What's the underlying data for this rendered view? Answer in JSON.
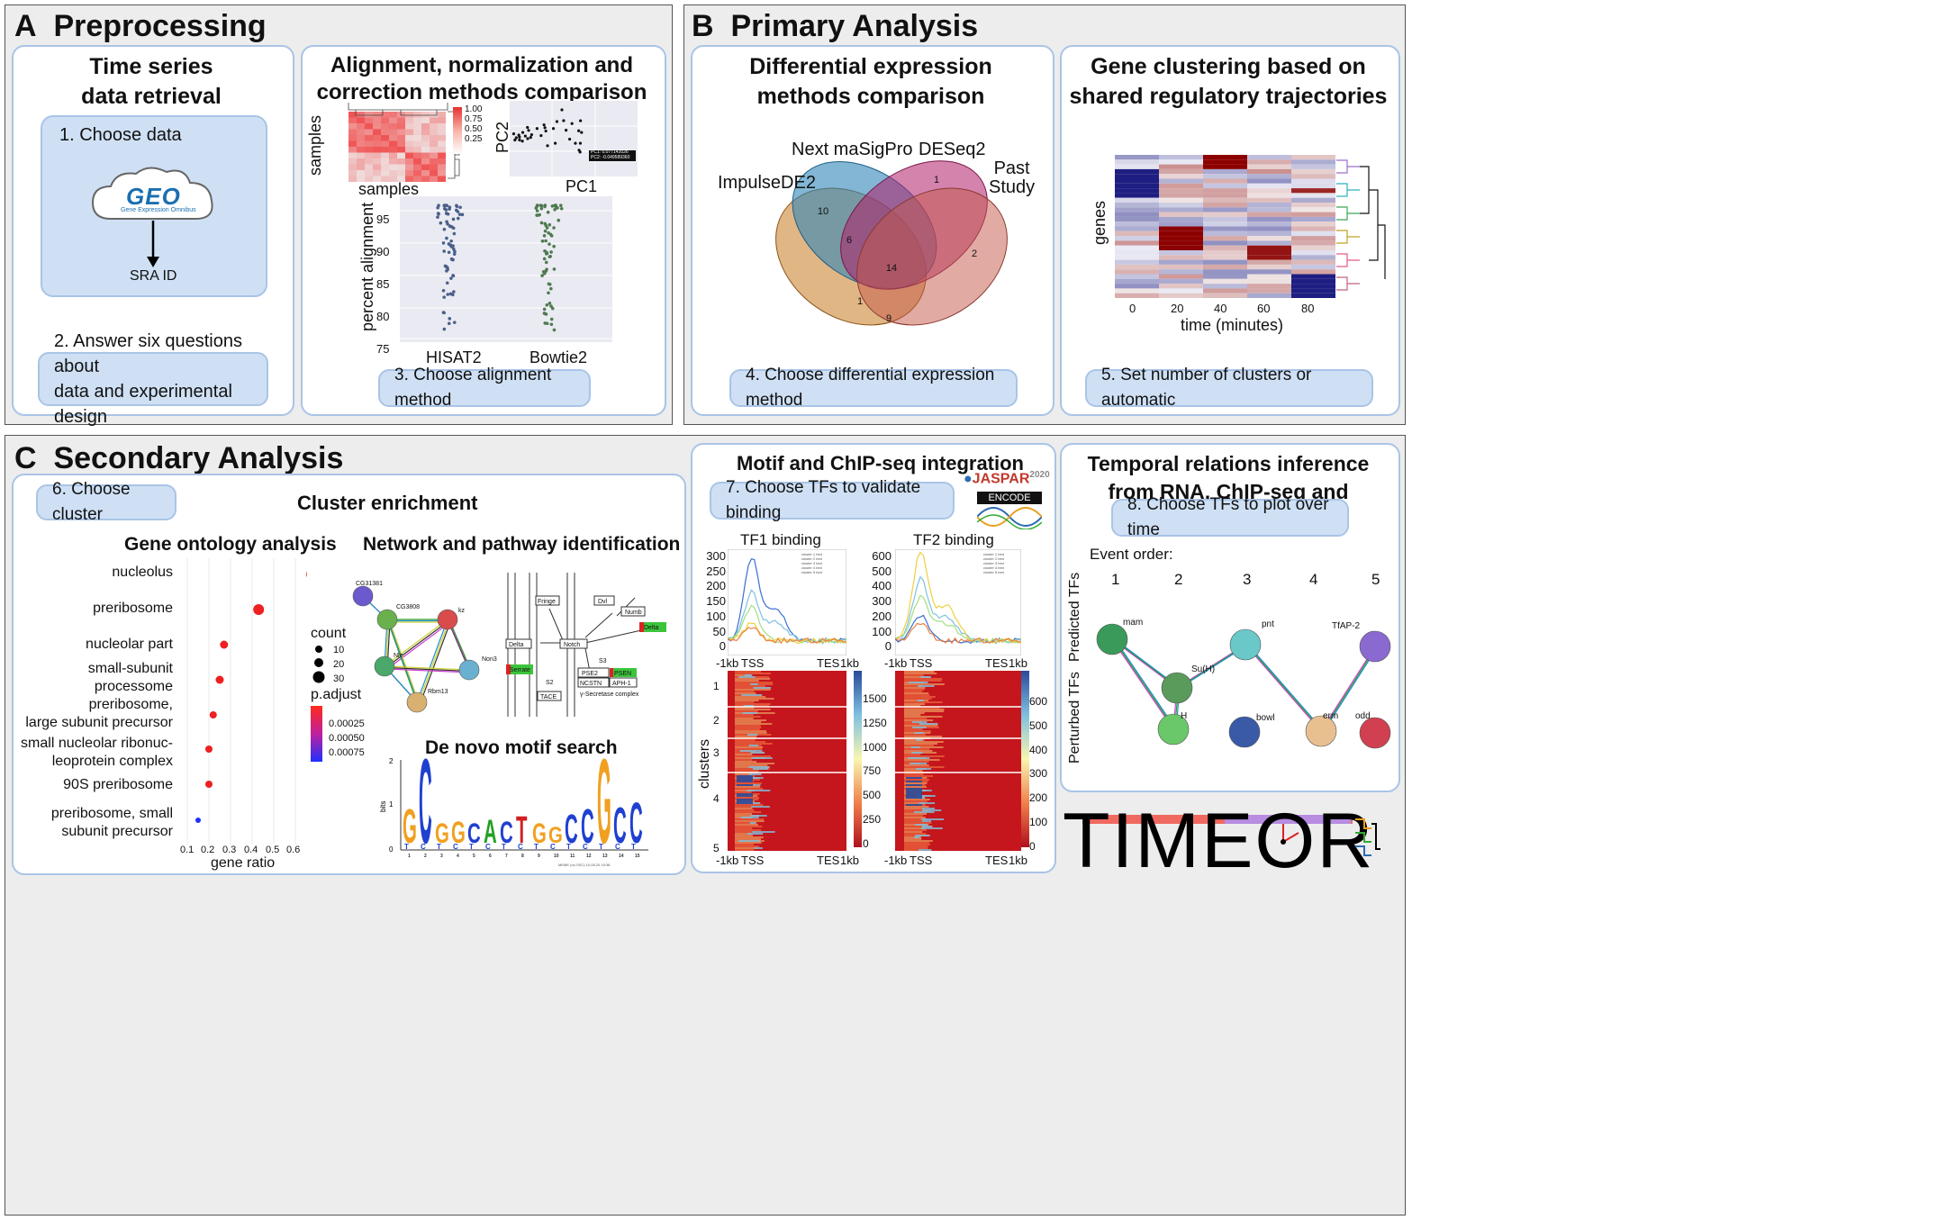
{
  "sections": {
    "a": {
      "letter": "A",
      "title": "Preprocessing"
    },
    "b": {
      "letter": "B",
      "title": "Primary Analysis"
    },
    "c": {
      "letter": "C",
      "title": "Secondary Analysis"
    }
  },
  "retrieval": {
    "title1": "Time series",
    "title2": "data retrieval",
    "step1": "1. Choose data",
    "geo_logo": "GEO",
    "geo_sub": "Gene Expression Omnibus",
    "sra": "SRA ID",
    "step2_line1": "2. Answer six questions about",
    "step2_line2": "data and experimental design"
  },
  "alignment": {
    "title1": "Alignment, normalization and",
    "title2": "correction methods comparison",
    "heat_ylabel": "samples",
    "heat_xlabel": "samples",
    "heat_scale": [
      "1.00",
      "0.75",
      "0.50",
      "0.25"
    ],
    "pca_ylabel": "PC2",
    "pca_xlabel": "PC1",
    "pca_legend1": "PC1: 0.077142026",
    "pca_legend2": "PC2: -0.049589360",
    "strip_ylabel": "percent alignment",
    "strip_yticks": [
      "95",
      "90",
      "85",
      "80",
      "75"
    ],
    "strip_x1": "HISAT2",
    "strip_x2": "Bowtie2",
    "step3": "3. Choose alignment method"
  },
  "diffexp": {
    "title1": "Differential expression",
    "title2": "methods comparison",
    "set1": "Next maSigPro",
    "set2": "DESeq2",
    "set3": "ImpulseDE2",
    "set4a": "Past",
    "set4b": "Study",
    "counts": [
      "10",
      "1",
      "6",
      "14",
      "2",
      "1",
      "9"
    ],
    "step4": "4. Choose differential expression method"
  },
  "clustering": {
    "title1": "Gene clustering based on",
    "title2": "shared regulatory trajectories",
    "ylabel": "genes",
    "xticks": [
      "0",
      "20",
      "40",
      "60",
      "80"
    ],
    "xlabel": "time (minutes)",
    "step5": "5. Set number of clusters or automatic"
  },
  "enrichment": {
    "step6": "6. Choose cluster",
    "title": "Cluster enrichment",
    "go_title": "Gene ontology analysis",
    "network_title": "Network and pathway identification",
    "motif_title": "De novo motif search",
    "go_terms": [
      "nucleolus",
      "preribosome",
      "nucleolar part",
      "small-subunit",
      "processome",
      "preribosome,",
      "large subunit precursor",
      "small nucleolar ribonuc-",
      "leoprotein complex",
      "90S preribosome",
      "preribosome, small",
      "subunit precursor"
    ],
    "xticks": [
      "0.1",
      "0.2",
      "0.3",
      "0.4",
      "0.5",
      "0.6"
    ],
    "xlabel": "gene ratio",
    "count_label": "count",
    "count_values": [
      "10",
      "20",
      "30"
    ],
    "padj_label": "p.adjust",
    "padj_values": [
      "0.00025",
      "0.00050",
      "0.00075"
    ],
    "nodes": [
      "CG31381",
      "CG3808",
      "kz",
      "Nle",
      "Non3",
      "Rbm13"
    ],
    "pathway": [
      "Fringe",
      "Dvl",
      "Numb",
      "Delta",
      "Delta",
      "Notch",
      "S2",
      "S3",
      "Serrate",
      "TACE",
      "PSE2",
      "PSEN",
      "NCSTN",
      "APH-1",
      "γ-Secretase complex"
    ],
    "motif_yaxis": "bits",
    "motif_letters": [
      "G",
      "C",
      "G",
      "G",
      "C",
      "A",
      "C",
      "T",
      "G",
      "G",
      "C",
      "C",
      "G",
      "C",
      "C"
    ],
    "motif_footer": "MEME (no SSC) 10.05.20 15:38"
  },
  "chipseq": {
    "title": "Motif and ChIP-seq integration",
    "step7": "7. Choose TFs to validate binding",
    "jaspar": "JASPAR",
    "jaspar_year": "2020",
    "encode": "ENCODE",
    "tf1": "TF1 binding",
    "tf2": "TF2 binding",
    "tf1_yticks": [
      "300",
      "250",
      "200",
      "150",
      "100",
      "50",
      "0"
    ],
    "tf2_yticks": [
      "600",
      "500",
      "400",
      "300",
      "200",
      "100",
      "0"
    ],
    "xaxis": [
      "-1kb",
      "TSS",
      "TES",
      "1kb"
    ],
    "clusters_label": "clusters",
    "cluster_ids": [
      "1",
      "2",
      "3",
      "4",
      "5"
    ],
    "tf1_scale": [
      "1500",
      "1250",
      "1000",
      "750",
      "500",
      "250",
      "0"
    ],
    "tf2_scale": [
      "600",
      "500",
      "400",
      "300",
      "200",
      "100",
      "0"
    ],
    "legend": [
      "cluster 1 bed",
      "cluster 2 bed",
      "cluster 3 bed",
      "cluster 4 bed",
      "cluster 5 bed"
    ]
  },
  "temporal": {
    "title1": "Temporal relations inference",
    "title2": "from RNA, ChIP-seq and networks",
    "step8": "8. Choose TFs to plot over time",
    "event_order": "Event order:",
    "events": [
      "1",
      "2",
      "3",
      "4",
      "5"
    ],
    "predicted": "Predicted TFs",
    "perturbed": "Perturbed TFs",
    "nodes": [
      "mam",
      "Su(H)",
      "H",
      "pnt",
      "bowl",
      "erm",
      "odd",
      "TfAP-2"
    ],
    "logo": "TIMEOR"
  }
}
